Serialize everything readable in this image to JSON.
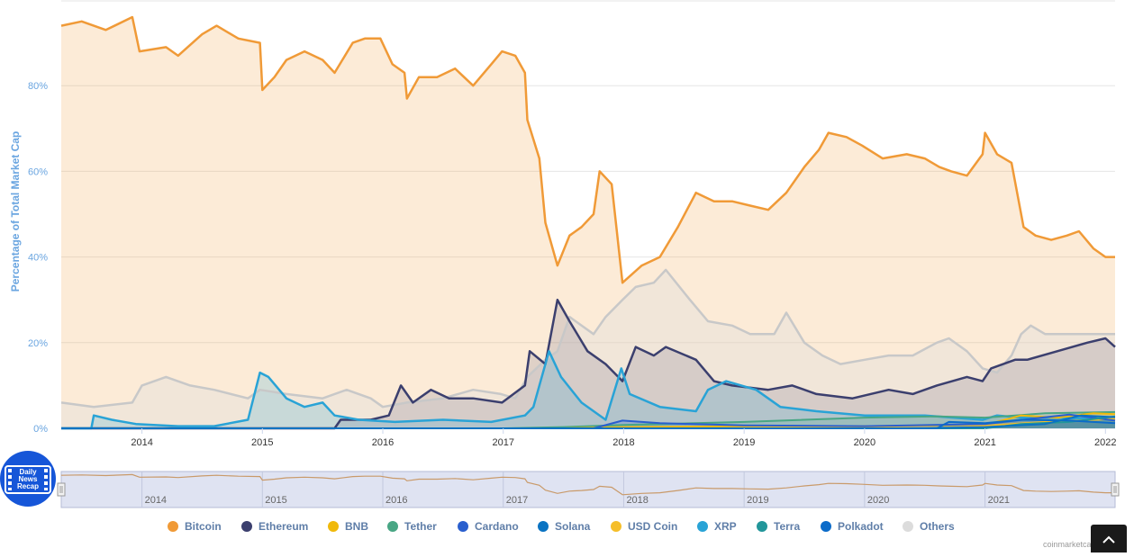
{
  "chart_data": {
    "type": "area",
    "ylabel": "Percentage of Total Market Cap",
    "ylim": [
      0,
      100
    ],
    "yticks": [
      "0%",
      "20%",
      "40%",
      "60%",
      "80%"
    ],
    "ytick_values": [
      0,
      20,
      40,
      60,
      80
    ],
    "xlim": [
      2013.33,
      2022.08
    ],
    "xticks": [
      "2014",
      "2015",
      "2016",
      "2017",
      "2018",
      "2019",
      "2020",
      "2021",
      "2022"
    ],
    "xtick_values": [
      2014,
      2015,
      2016,
      2017,
      2018,
      2019,
      2020,
      2021,
      2022
    ],
    "navigator_ticks": [
      "2014",
      "2015",
      "2016",
      "2017",
      "2018",
      "2019",
      "2020",
      "2021"
    ],
    "grid": true,
    "legend_position": "bottom",
    "series": [
      {
        "name": "Bitcoin",
        "color": "#f09a37",
        "points": [
          [
            2013.33,
            94
          ],
          [
            2013.5,
            95
          ],
          [
            2013.7,
            93
          ],
          [
            2013.92,
            96
          ],
          [
            2013.98,
            88
          ],
          [
            2014.2,
            89
          ],
          [
            2014.3,
            87
          ],
          [
            2014.5,
            92
          ],
          [
            2014.62,
            94
          ],
          [
            2014.8,
            91
          ],
          [
            2014.98,
            90
          ],
          [
            2015.0,
            79
          ],
          [
            2015.1,
            82
          ],
          [
            2015.2,
            86
          ],
          [
            2015.35,
            88
          ],
          [
            2015.5,
            86
          ],
          [
            2015.6,
            83
          ],
          [
            2015.75,
            90
          ],
          [
            2015.85,
            91
          ],
          [
            2015.98,
            91
          ],
          [
            2016.08,
            85
          ],
          [
            2016.18,
            83
          ],
          [
            2016.2,
            77
          ],
          [
            2016.3,
            82
          ],
          [
            2016.45,
            82
          ],
          [
            2016.6,
            84
          ],
          [
            2016.75,
            80
          ],
          [
            2016.9,
            85
          ],
          [
            2016.99,
            88
          ],
          [
            2017.1,
            87
          ],
          [
            2017.18,
            83
          ],
          [
            2017.2,
            72
          ],
          [
            2017.3,
            63
          ],
          [
            2017.35,
            48
          ],
          [
            2017.45,
            38
          ],
          [
            2017.55,
            45
          ],
          [
            2017.65,
            47
          ],
          [
            2017.75,
            50
          ],
          [
            2017.8,
            60
          ],
          [
            2017.9,
            57
          ],
          [
            2017.99,
            34
          ],
          [
            2018.15,
            38
          ],
          [
            2018.3,
            40
          ],
          [
            2018.45,
            47
          ],
          [
            2018.6,
            55
          ],
          [
            2018.75,
            53
          ],
          [
            2018.9,
            53
          ],
          [
            2019.05,
            52
          ],
          [
            2019.2,
            51
          ],
          [
            2019.35,
            55
          ],
          [
            2019.5,
            61
          ],
          [
            2019.62,
            65
          ],
          [
            2019.7,
            69
          ],
          [
            2019.85,
            68
          ],
          [
            2019.98,
            66
          ],
          [
            2020.15,
            63
          ],
          [
            2020.35,
            64
          ],
          [
            2020.5,
            63
          ],
          [
            2020.62,
            61
          ],
          [
            2020.72,
            60
          ],
          [
            2020.85,
            59
          ],
          [
            2020.98,
            64
          ],
          [
            2021.0,
            69
          ],
          [
            2021.1,
            64
          ],
          [
            2021.22,
            62
          ],
          [
            2021.32,
            47
          ],
          [
            2021.42,
            45
          ],
          [
            2021.55,
            44
          ],
          [
            2021.68,
            45
          ],
          [
            2021.78,
            46
          ],
          [
            2021.9,
            42
          ],
          [
            2022.0,
            40
          ],
          [
            2022.08,
            40
          ]
        ]
      },
      {
        "name": "Ethereum",
        "color": "#3b3f6e",
        "points": [
          [
            2013.33,
            0
          ],
          [
            2015.6,
            0
          ],
          [
            2015.65,
            2
          ],
          [
            2015.9,
            2
          ],
          [
            2016.05,
            3
          ],
          [
            2016.15,
            10
          ],
          [
            2016.25,
            6
          ],
          [
            2016.4,
            9
          ],
          [
            2016.55,
            7
          ],
          [
            2016.75,
            7
          ],
          [
            2016.99,
            6
          ],
          [
            2017.18,
            10
          ],
          [
            2017.22,
            18
          ],
          [
            2017.35,
            15
          ],
          [
            2017.45,
            30
          ],
          [
            2017.55,
            25
          ],
          [
            2017.7,
            18
          ],
          [
            2017.85,
            15
          ],
          [
            2017.99,
            11
          ],
          [
            2018.1,
            19
          ],
          [
            2018.25,
            17
          ],
          [
            2018.35,
            19
          ],
          [
            2018.6,
            16
          ],
          [
            2018.75,
            11
          ],
          [
            2018.9,
            10
          ],
          [
            2019.2,
            9
          ],
          [
            2019.4,
            10
          ],
          [
            2019.6,
            8
          ],
          [
            2019.9,
            7
          ],
          [
            2020.2,
            9
          ],
          [
            2020.4,
            8
          ],
          [
            2020.6,
            10
          ],
          [
            2020.85,
            12
          ],
          [
            2020.98,
            11
          ],
          [
            2021.05,
            14
          ],
          [
            2021.25,
            16
          ],
          [
            2021.35,
            16
          ],
          [
            2021.6,
            18
          ],
          [
            2021.85,
            20
          ],
          [
            2022.0,
            21
          ],
          [
            2022.08,
            19
          ]
        ]
      },
      {
        "name": "BNB",
        "color": "#f0b90b",
        "points": [
          [
            2013.33,
            0
          ],
          [
            2017.5,
            0
          ],
          [
            2018.0,
            0.3
          ],
          [
            2019.0,
            0.5
          ],
          [
            2020.0,
            0.5
          ],
          [
            2021.0,
            0.8
          ],
          [
            2021.3,
            3
          ],
          [
            2021.6,
            2.5
          ],
          [
            2021.9,
            3.5
          ],
          [
            2022.08,
            3.3
          ]
        ]
      },
      {
        "name": "Tether",
        "color": "#48a684",
        "points": [
          [
            2013.33,
            0
          ],
          [
            2017.0,
            0
          ],
          [
            2017.5,
            0.3
          ],
          [
            2018.0,
            0.8
          ],
          [
            2019.0,
            1.5
          ],
          [
            2020.0,
            2.5
          ],
          [
            2020.6,
            2.8
          ],
          [
            2021.0,
            2.5
          ],
          [
            2021.5,
            3.5
          ],
          [
            2022.08,
            3.8
          ]
        ]
      },
      {
        "name": "Cardano",
        "color": "#2a5fce",
        "points": [
          [
            2013.33,
            0
          ],
          [
            2017.75,
            0
          ],
          [
            2017.99,
            1.8
          ],
          [
            2018.3,
            1.2
          ],
          [
            2019.0,
            0.7
          ],
          [
            2020.0,
            0.5
          ],
          [
            2021.0,
            1.0
          ],
          [
            2021.4,
            2.3
          ],
          [
            2021.7,
            3.2
          ],
          [
            2022.08,
            1.8
          ]
        ]
      },
      {
        "name": "Solana",
        "color": "#0a73c2",
        "points": [
          [
            2013.33,
            0
          ],
          [
            2020.5,
            0
          ],
          [
            2021.0,
            0.3
          ],
          [
            2021.5,
            1.0
          ],
          [
            2021.8,
            3.0
          ],
          [
            2022.08,
            2.6
          ]
        ]
      },
      {
        "name": "USD Coin",
        "color": "#f5be2a",
        "points": [
          [
            2013.33,
            0
          ],
          [
            2018.8,
            0
          ],
          [
            2019.2,
            0.3
          ],
          [
            2020.0,
            0.3
          ],
          [
            2020.7,
            0.8
          ],
          [
            2021.0,
            0.6
          ],
          [
            2021.5,
            1.5
          ],
          [
            2022.08,
            2.2
          ]
        ]
      },
      {
        "name": "XRP",
        "color": "#29a3d6",
        "points": [
          [
            2013.33,
            0
          ],
          [
            2013.58,
            0
          ],
          [
            2013.6,
            3
          ],
          [
            2013.75,
            2
          ],
          [
            2013.95,
            1
          ],
          [
            2014.3,
            0.5
          ],
          [
            2014.6,
            0.5
          ],
          [
            2014.88,
            2
          ],
          [
            2014.98,
            13
          ],
          [
            2015.05,
            12
          ],
          [
            2015.2,
            7
          ],
          [
            2015.35,
            5
          ],
          [
            2015.5,
            6
          ],
          [
            2015.6,
            3
          ],
          [
            2015.8,
            2
          ],
          [
            2016.1,
            1.5
          ],
          [
            2016.5,
            2
          ],
          [
            2016.9,
            1.5
          ],
          [
            2017.18,
            3
          ],
          [
            2017.25,
            5
          ],
          [
            2017.38,
            18
          ],
          [
            2017.48,
            12
          ],
          [
            2017.65,
            6
          ],
          [
            2017.85,
            2
          ],
          [
            2017.98,
            14
          ],
          [
            2018.05,
            8
          ],
          [
            2018.3,
            5
          ],
          [
            2018.6,
            4
          ],
          [
            2018.7,
            9
          ],
          [
            2018.85,
            11
          ],
          [
            2019.1,
            9
          ],
          [
            2019.3,
            5
          ],
          [
            2019.6,
            4
          ],
          [
            2020.0,
            3
          ],
          [
            2020.5,
            3
          ],
          [
            2020.98,
            2
          ],
          [
            2021.1,
            3
          ],
          [
            2021.3,
            2.5
          ],
          [
            2021.6,
            2.5
          ],
          [
            2022.08,
            2
          ]
        ]
      },
      {
        "name": "Terra",
        "color": "#22969a",
        "points": [
          [
            2013.33,
            0
          ],
          [
            2021.0,
            0
          ],
          [
            2021.3,
            1.0
          ],
          [
            2021.7,
            1.5
          ],
          [
            2022.08,
            2.8
          ]
        ]
      },
      {
        "name": "Polkadot",
        "color": "#0b6bc9",
        "points": [
          [
            2013.33,
            0
          ],
          [
            2020.6,
            0
          ],
          [
            2020.7,
            1.5
          ],
          [
            2021.0,
            1.2
          ],
          [
            2021.3,
            2.0
          ],
          [
            2021.7,
            1.8
          ],
          [
            2022.08,
            1.2
          ]
        ]
      },
      {
        "name": "Others",
        "color": "#dcdcdc",
        "points": [
          [
            2013.33,
            6
          ],
          [
            2013.6,
            5
          ],
          [
            2013.92,
            6
          ],
          [
            2014.0,
            10
          ],
          [
            2014.2,
            12
          ],
          [
            2014.4,
            10
          ],
          [
            2014.6,
            9
          ],
          [
            2014.88,
            7
          ],
          [
            2014.98,
            9
          ],
          [
            2015.2,
            8
          ],
          [
            2015.5,
            7
          ],
          [
            2015.7,
            9
          ],
          [
            2015.9,
            7
          ],
          [
            2016.0,
            5
          ],
          [
            2016.2,
            6
          ],
          [
            2016.5,
            7
          ],
          [
            2016.75,
            9
          ],
          [
            2016.98,
            8
          ],
          [
            2017.1,
            7
          ],
          [
            2017.2,
            12
          ],
          [
            2017.35,
            16
          ],
          [
            2017.45,
            18
          ],
          [
            2017.55,
            26
          ],
          [
            2017.75,
            22
          ],
          [
            2017.85,
            26
          ],
          [
            2017.99,
            30
          ],
          [
            2018.1,
            33
          ],
          [
            2018.25,
            34
          ],
          [
            2018.35,
            37
          ],
          [
            2018.55,
            30
          ],
          [
            2018.7,
            25
          ],
          [
            2018.9,
            24
          ],
          [
            2019.05,
            22
          ],
          [
            2019.25,
            22
          ],
          [
            2019.35,
            27
          ],
          [
            2019.5,
            20
          ],
          [
            2019.65,
            17
          ],
          [
            2019.8,
            15
          ],
          [
            2020.0,
            16
          ],
          [
            2020.2,
            17
          ],
          [
            2020.4,
            17
          ],
          [
            2020.6,
            20
          ],
          [
            2020.7,
            21
          ],
          [
            2020.85,
            18
          ],
          [
            2020.98,
            14
          ],
          [
            2021.1,
            13
          ],
          [
            2021.22,
            17
          ],
          [
            2021.3,
            22
          ],
          [
            2021.38,
            24
          ],
          [
            2021.5,
            22
          ],
          [
            2021.7,
            22
          ],
          [
            2021.9,
            22
          ],
          [
            2022.08,
            22
          ]
        ]
      }
    ]
  },
  "legend": [
    {
      "label": "Bitcoin",
      "color": "#f09a37"
    },
    {
      "label": "Ethereum",
      "color": "#3b3f6e"
    },
    {
      "label": "BNB",
      "color": "#f0b90b"
    },
    {
      "label": "Tether",
      "color": "#48a684"
    },
    {
      "label": "Cardano",
      "color": "#2a5fce"
    },
    {
      "label": "Solana",
      "color": "#0a73c2"
    },
    {
      "label": "USD Coin",
      "color": "#f5be2a"
    },
    {
      "label": "XRP",
      "color": "#29a3d6"
    },
    {
      "label": "Terra",
      "color": "#22969a"
    },
    {
      "label": "Polkadot",
      "color": "#0b6bc9"
    },
    {
      "label": "Others",
      "color": "#dcdcdc"
    }
  ],
  "badge": {
    "line1": "Daily",
    "line2": "News",
    "line3": "Recap",
    "icon": "film-strip-icon"
  },
  "credit": "coinmarketcap.com",
  "menu_icon": "chevron-up-icon"
}
